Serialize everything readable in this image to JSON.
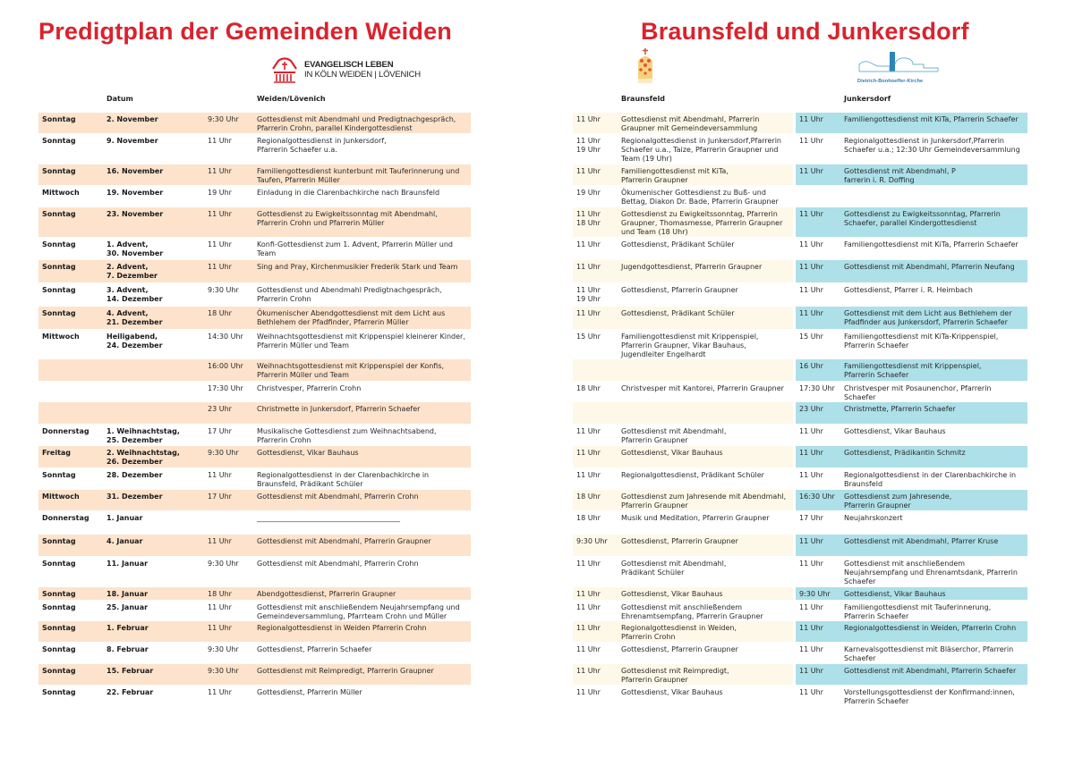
{
  "titles": {
    "left": "Predigtplan der Gemeinden Weiden",
    "right": "Braunsfeld und Junkersdorf"
  },
  "logos": {
    "weiden_line1": "EVANGELISCH LEBEN",
    "weiden_line2": "IN KÖLN WEIDEN | LÖVENICH",
    "dbk": "Dietrich-Bonhoeffer-Kirche"
  },
  "headers": {
    "datum": "Datum",
    "weiden": "Weiden/Lövenich",
    "braunsfeld": "Braunsfeld",
    "junkersdorf": "Junkersdorf"
  },
  "colors": {
    "title": "#d9232d",
    "weiden_shade": "#fde3cb",
    "braunsfeld_shade": "#fef8e8",
    "junkersdorf_shade": "#ade0e8"
  },
  "rows": [
    {
      "day": "Sonntag",
      "date": "2. November",
      "w_time": "9:30 Uhr",
      "w_text": "Gottesdienst mit Abendmahl und Predigtnachgespräch,\nPfarrerin Crohn, parallel Kindergottesdienst",
      "b_time": "11 Uhr",
      "b_text": "Gottesdienst mit Abendmahl, Pfarrerin\nGraupner mit Gemeindeversammlung",
      "j_time": "11 Uhr",
      "j_text": "Familiengottesdienst mit KiTa, Pfarrerin Schaefer"
    },
    {
      "day": "Sonntag",
      "date": "9. November",
      "w_time": "11 Uhr",
      "w_text": "Regionalgottesdienst in Junkersdorf,\nPfarrerin Schaefer u.a.",
      "b_time": "11 Uhr\n19 Uhr",
      "b_text": "Regionalgottesdienst in Junkersdorf,Pfarrerin\nSchaefer u.a., Taize, Pfarrerin Graupner und\nTeam (19 Uhr)",
      "j_time": "11 Uhr",
      "j_text": "Regionalgottesdienst in Junkersdorf,Pfarrerin\nSchaefer u.a.; 12:30 Uhr Gemeindeversammlung"
    },
    {
      "day": "Sonntag",
      "date": "16. November",
      "w_time": "11  Uhr",
      "w_text": "Familiengottesdienst kunterbunt mit Tauferinnerung und\nTaufen, Pfarrerin Müller",
      "b_time": "11 Uhr",
      "b_text": "Familiengottesdienst mit KiTa,\nPfarrerin Graupner",
      "j_time": "11 Uhr",
      "j_text": "Gottesdienst mit Abendmahl, P\nfarrerin i. R. Doffing"
    },
    {
      "day": "Mittwoch",
      "date": "19. November",
      "w_time": "19 Uhr",
      "w_text": "Einladung in die Clarenbachkirche nach Braunsfeld",
      "b_time": "19 Uhr",
      "b_text": "Ökumenischer Gottesdienst zu Buß- und\nBettag, Diakon Dr. Bade, Pfarrerin Graupner",
      "j_time": "",
      "j_text": ""
    },
    {
      "day": "Sonntag",
      "date": "23. November",
      "w_time": "11 Uhr",
      "w_text": "Gottesdienst zu Ewigkeitssonntag mit Abendmahl,\nPfarrerin Crohn und Pfarrerin Müller",
      "b_time": "11 Uhr\n18 Uhr",
      "b_text": "Gottesdienst zu Ewigkeitssonntag, Pfarrerin\nGraupner, Thomasmesse, Pfarrerin Graupner\nund Team (18 Uhr)",
      "j_time": "11 Uhr",
      "j_text": "Gottesdienst zu Ewigkeitssonntag, Pfarrerin\nSchaefer, parallel Kindergottesdienst"
    },
    {
      "day": "Sonntag",
      "date": "1. Advent,\n30. November",
      "w_time": "11 Uhr",
      "w_text": "Konfi-Gottesdienst zum 1. Advent, Pfarrerin Müller und\nTeam",
      "b_time": "11 Uhr",
      "b_text": "Gottesdienst, Prädikant Schüler",
      "j_time": "11 Uhr",
      "j_text": "Familiengottesdienst mit KiTa, Pfarrerin Schaefer"
    },
    {
      "day": "Sonntag",
      "date": "2. Advent,\n7. Dezember",
      "w_time": "11 Uhr",
      "w_text": "Sing and Pray, Kirchenmusikier Frederik Stark und Team",
      "b_time": "11 Uhr",
      "b_text": "Jugendgottesdienst, Pfarrerin Graupner",
      "j_time": "11 Uhr",
      "j_text": "Gottesdienst mit Abendmahl, Pfarrerin Neufang"
    },
    {
      "day": "Sonntag",
      "date": "3. Advent,\n14. Dezember",
      "w_time": "9:30 Uhr",
      "w_text": "Gottesdienst und Abendmahl Predigtnachgespräch,\nPfarrerin Crohn",
      "b_time": "11 Uhr\n19 Uhr",
      "b_text": "Gottesdienst, Pfarrerin Graupner",
      "j_time": "11 Uhr",
      "j_text": "Gottesdienst, Pfarrer i. R. Heimbach"
    },
    {
      "day": "Sonntag",
      "date": "4. Advent,\n21. Dezember",
      "w_time": "18 Uhr",
      "w_text": "Ökumenischer Abendgottesdienst mit dem Licht aus\nBethlehem der Pfadfinder, Pfarrerin Müller",
      "b_time": "11 Uhr",
      "b_text": "Gottesdienst, Prädikant Schüler",
      "j_time": "11 Uhr",
      "j_text": "Gottesdienst mit dem Licht aus Bethlehem der\nPfadfinder aus Junkersdorf, Pfarrerin Schaefer"
    },
    {
      "day": "Mittwoch",
      "date": "Heiligabend,\n24. Dezember",
      "w_time": "14:30 Uhr",
      "w_text": "Weihnachtsgottesdienst mit Krippenspiel kleinerer Kinder,\nPfarrerin Müller und Team",
      "b_time": "15 Uhr",
      "b_text": "Familiengottesdienst mit Krippenspiel,\nPfarrerin Graupner, Vikar Bauhaus,\nJugendleiter Engelhardt",
      "j_time": "15 Uhr",
      "j_text": "Familiengottesdienst mit KiTa-Krippenspiel,\nPfarrerin Schaefer"
    },
    {
      "day": "",
      "date": "",
      "w_time": "16:00 Uhr",
      "w_text": "Weihnachtsgottesdienst mit Krippenspiel der Konfis,\nPfarrerin Müller und Team",
      "b_time": "",
      "b_text": "",
      "j_time": "16 Uhr",
      "j_text": "Familiengottesdienst mit Krippenspiel,\nPfarrerin Schaefer"
    },
    {
      "day": "",
      "date": "",
      "w_time": "17:30 Uhr",
      "w_text": "Christvesper, Pfarrerin Crohn",
      "b_time": "18 Uhr",
      "b_text": "Christvesper mit Kantorei, Pfarrerin Graupner",
      "j_time": "17:30 Uhr",
      "j_text": "Christvesper mit Posaunenchor, Pfarrerin\nSchaefer"
    },
    {
      "day": "",
      "date": "",
      "w_time": "23 Uhr",
      "w_text": "Christmette in Junkersdorf, Pfarrerin Schaefer",
      "b_time": "",
      "b_text": "",
      "j_time": "23 Uhr",
      "j_text": "Christmette, Pfarrerin Schaefer"
    },
    {
      "day": "Donnerstag",
      "date": "1. Weihnachtstag,\n25. Dezember",
      "w_time": "17 Uhr",
      "w_text": "Musikalische Gottesdienst zum Weihnachtsabend,\nPfarrerin Crohn",
      "b_time": "11 Uhr",
      "b_text": "Gottesdienst mit Abendmahl,\nPfarrerin Graupner",
      "j_time": "11 Uhr",
      "j_text": "Gottesdienst, Vikar Bauhaus"
    },
    {
      "day": "Freitag",
      "date": "2. Weihnachtstag,\n26. Dezember",
      "w_time": "9:30 Uhr",
      "w_text": "Gottesdienst, Vikar Bauhaus",
      "b_time": "11 Uhr",
      "b_text": "Gottesdienst, Vikar Bauhaus",
      "j_time": "11 Uhr",
      "j_text": "Gottesdienst, Prädikantin Schmitz"
    },
    {
      "day": "Sonntag",
      "date": "28. Dezember",
      "w_time": "11 Uhr",
      "w_text": "Regionalgottesdienst in der Clarenbachkirche in\nBraunsfeld, Prädikant Schüler",
      "b_time": "11 Uhr",
      "b_text": "Regionalgottesdienst, Prädikant Schüler",
      "j_time": "11 Uhr",
      "j_text": "Regionalgottesdienst in der Clarenbachkirche in\nBraunsfeld"
    },
    {
      "day": "Mittwoch",
      "date": "31. Dezember",
      "w_time": "17 Uhr",
      "w_text": "Gottesdienst mit Abendmahl, Pfarrerin Crohn",
      "b_time": "18 Uhr",
      "b_text": "Gottesdienst zum Jahresende mit Abendmahl,\nPfarrerin Graupner",
      "j_time": "16:30 Uhr",
      "j_text": "Gottesdienst zum Jahresende,\nPfarrerin Graupner"
    },
    {
      "day": "Donnerstag",
      "date": "1. Januar",
      "w_time": "",
      "w_text": "________________________________________",
      "b_time": "18 Uhr",
      "b_text": "Musik und Meditation, Pfarrerin Graupner",
      "j_time": "17 Uhr",
      "j_text": "Neujahrskonzert"
    },
    {
      "day": "Sonntag",
      "date": "4. Januar",
      "w_time": "11 Uhr",
      "w_text": "Gottesdienst mit Abendmahl, Pfarrerin Graupner",
      "b_time": "9:30 Uhr",
      "b_text": "Gottesdienst, Pfarrerin Graupner",
      "j_time": "11 Uhr",
      "j_text": "Gottesdienst mit Abendmahl, Pfarrer Kruse"
    },
    {
      "day": "Sonntag",
      "date": "11. Januar",
      "w_time": "9:30 Uhr",
      "w_text": "Gottesdienst mit Abendmahl, Pfarrerin Crohn",
      "b_time": "11 Uhr",
      "b_text": "Gottesdienst mit Abendmahl,\nPrädikant Schüler",
      "j_time": "11 Uhr",
      "j_text": "Gottesdienst mit anschließendem\nNeujahrsempfang und Ehrenamtsdank, Pfarrerin\nSchaefer"
    },
    {
      "day": "Sonntag",
      "date": "18. Januar",
      "w_time": "18 Uhr",
      "w_text": "Abendgottesdienst, Pfarrerin Graupner",
      "b_time": "11 Uhr",
      "b_text": "Gottesdienst, Vikar Bauhaus",
      "j_time": "9:30 Uhr",
      "j_text": "Gottesdienst, Vikar Bauhaus"
    },
    {
      "day": "Sonntag",
      "date": "25. Januar",
      "w_time": "11 Uhr",
      "w_text": "Gottesdienst mit anschließendem Neujahrsempfang und\nGemeindeversammlung, Pfarrteam Crohn und Müller",
      "b_time": "11 Uhr",
      "b_text": "Gottesdienst mit anschließendem\nEhrenamtsempfang, Pfarrerin Graupner",
      "j_time": "11 Uhr",
      "j_text": "Familiengottesdienst mit Tauferinnerung,\nPfarrerin Schaefer"
    },
    {
      "day": "Sonntag",
      "date": "1. Februar",
      "w_time": "11 Uhr",
      "w_text": "Regionalgottesdienst in Weiden Pfarrerin Crohn",
      "b_time": "11 Uhr",
      "b_text": "Regionalgottesdienst in Weiden,\nPfarrerin Crohn",
      "j_time": "11 Uhr",
      "j_text": "Regionalgottesdienst in Weiden, Pfarrerin Crohn"
    },
    {
      "day": "Sonntag",
      "date": "8. Februar",
      "w_time": "9:30 Uhr",
      "w_text": "Gottesdienst, Pfarrerin Schaefer",
      "b_time": "11 Uhr",
      "b_text": "Gottesdienst, Pfarrerin Graupner",
      "j_time": "11 Uhr",
      "j_text": "Karnevalsgottesdienst mit Bläserchor, Pfarrerin\nSchaefer"
    },
    {
      "day": "Sonntag",
      "date": "15. Februar",
      "w_time": "9:30 Uhr",
      "w_text": "Gottesdienst mit Reimpredigt, Pfarrerin Graupner",
      "b_time": "11 Uhr",
      "b_text": "Gottesdienst mit Reimpredigt,\nPfarrerin Graupner",
      "j_time": "11 Uhr",
      "j_text": "Gottesdienst mit Abendmahl, Pfarrerin Schaefer"
    },
    {
      "day": "Sonntag",
      "date": "22. Februar",
      "w_time": "11 Uhr",
      "w_text": "Gottesdienst, Pfarrerin Müller",
      "b_time": "11 Uhr",
      "b_text": "Gottesdienst, Vikar Bauhaus",
      "j_time": "11 Uhr",
      "j_text": "Vorstellungsgottesdienst der Konfirmand:innen,\nPfarrerin Schaefer"
    }
  ]
}
